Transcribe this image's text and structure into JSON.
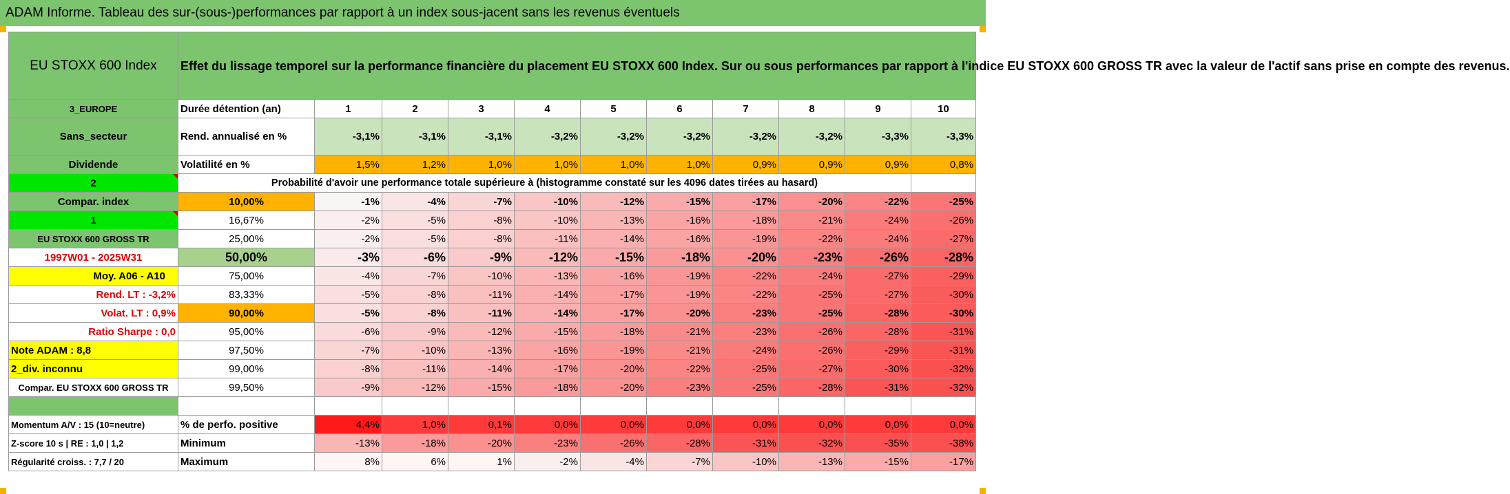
{
  "title": "ADAM Informe. Tableau des sur-(sous-)performances par rapport à un index sous-jacent sans les revenus éventuels",
  "header": {
    "index_name": "EU STOXX 600 Index",
    "description": "Effet du lissage temporel sur la performance financière du placement EU STOXX 600 Index. Sur ou sous performances par rapport à l'indice EU STOXX 600 GROSS TR avec la valeur de l'actif sans prise en compte des revenus."
  },
  "left_labels": {
    "region": "3_EUROPE",
    "sector": "Sans_secteur",
    "dividend": "Dividende",
    "dividend_code": "2",
    "compar_index": "Compar. index",
    "compar_code": "1",
    "compar_name": "EU STOXX 600 GROSS TR",
    "period": "1997W01 - 2025W31",
    "moy": "Moy. A06 - A10",
    "rend_lt": "Rend. LT :   -3,2%",
    "volat_lt": "Volat. LT :   0,9%",
    "sharpe": "Ratio Sharpe :   0,0",
    "note": "Note ADAM : 8,8",
    "div": "2_div. inconnu",
    "compar_full": "Compar. EU STOXX 600 GROSS TR"
  },
  "row_labels": {
    "duration": "Durée détention (an)",
    "rend": "Rend. annualisé en %",
    "vol": "Volatilité en %",
    "proba": "Probabilité d'avoir une performance totale supérieure à (histogramme constaté sur les 4096 dates tirées au hasard)"
  },
  "years": [
    "1",
    "2",
    "3",
    "4",
    "5",
    "6",
    "7",
    "8",
    "9",
    "10"
  ],
  "rend": [
    "-3,1%",
    "-3,1%",
    "-3,1%",
    "-3,2%",
    "-3,2%",
    "-3,2%",
    "-3,2%",
    "-3,2%",
    "-3,3%",
    "-3,3%"
  ],
  "vol": [
    "1,5%",
    "1,2%",
    "1,0%",
    "1,0%",
    "1,0%",
    "1,0%",
    "0,9%",
    "0,9%",
    "0,9%",
    "0,8%"
  ],
  "percentiles": [
    {
      "p": "10,00%",
      "v": [
        "-1%",
        "-4%",
        "-7%",
        "-10%",
        "-12%",
        "-15%",
        "-17%",
        "-20%",
        "-22%",
        "-25%"
      ]
    },
    {
      "p": "16,67%",
      "v": [
        "-2%",
        "-5%",
        "-8%",
        "-10%",
        "-13%",
        "-16%",
        "-18%",
        "-21%",
        "-24%",
        "-26%"
      ]
    },
    {
      "p": "25,00%",
      "v": [
        "-2%",
        "-5%",
        "-8%",
        "-11%",
        "-14%",
        "-16%",
        "-19%",
        "-22%",
        "-24%",
        "-27%"
      ]
    },
    {
      "p": "50,00%",
      "v": [
        "-3%",
        "-6%",
        "-9%",
        "-12%",
        "-15%",
        "-18%",
        "-20%",
        "-23%",
        "-26%",
        "-28%"
      ]
    },
    {
      "p": "75,00%",
      "v": [
        "-4%",
        "-7%",
        "-10%",
        "-13%",
        "-16%",
        "-19%",
        "-22%",
        "-24%",
        "-27%",
        "-29%"
      ]
    },
    {
      "p": "83,33%",
      "v": [
        "-5%",
        "-8%",
        "-11%",
        "-14%",
        "-17%",
        "-19%",
        "-22%",
        "-25%",
        "-27%",
        "-30%"
      ]
    },
    {
      "p": "90,00%",
      "v": [
        "-5%",
        "-8%",
        "-11%",
        "-14%",
        "-17%",
        "-20%",
        "-23%",
        "-25%",
        "-28%",
        "-30%"
      ]
    },
    {
      "p": "95,00%",
      "v": [
        "-6%",
        "-9%",
        "-12%",
        "-15%",
        "-18%",
        "-21%",
        "-23%",
        "-26%",
        "-28%",
        "-31%"
      ]
    },
    {
      "p": "97,50%",
      "v": [
        "-7%",
        "-10%",
        "-13%",
        "-16%",
        "-19%",
        "-21%",
        "-24%",
        "-26%",
        "-29%",
        "-31%"
      ]
    },
    {
      "p": "99,00%",
      "v": [
        "-8%",
        "-11%",
        "-14%",
        "-17%",
        "-20%",
        "-22%",
        "-25%",
        "-27%",
        "-30%",
        "-32%"
      ]
    },
    {
      "p": "99,50%",
      "v": [
        "-9%",
        "-12%",
        "-15%",
        "-18%",
        "-20%",
        "-23%",
        "-25%",
        "-28%",
        "-31%",
        "-32%"
      ]
    }
  ],
  "bottom": {
    "momentum_label": "Momentum A/V : 15 (10=neutre)",
    "zscore_label": "Z-score 10 s  |  RE : 1,0  |  1,2",
    "regul_label": "Régularité croiss. : 7,7 / 20",
    "pos_label": "% de perfo. positive",
    "min_label": "Minimum",
    "max_label": "Maximum",
    "pos": [
      "4,4%",
      "1,0%",
      "0,1%",
      "0,0%",
      "0,0%",
      "0,0%",
      "0,0%",
      "0,0%",
      "0,0%",
      "0,0%"
    ],
    "min": [
      "-13%",
      "-18%",
      "-20%",
      "-23%",
      "-26%",
      "-28%",
      "-31%",
      "-32%",
      "-35%",
      "-38%"
    ],
    "max": [
      "8%",
      "6%",
      "1%",
      "-2%",
      "-4%",
      "-7%",
      "-10%",
      "-13%",
      "-15%",
      "-17%"
    ]
  },
  "colors": {
    "green": "#7dc46f",
    "bright_green": "#00e600",
    "yellow": "#ffff00",
    "orange": "#ffb300",
    "red_label": "#e00000"
  }
}
